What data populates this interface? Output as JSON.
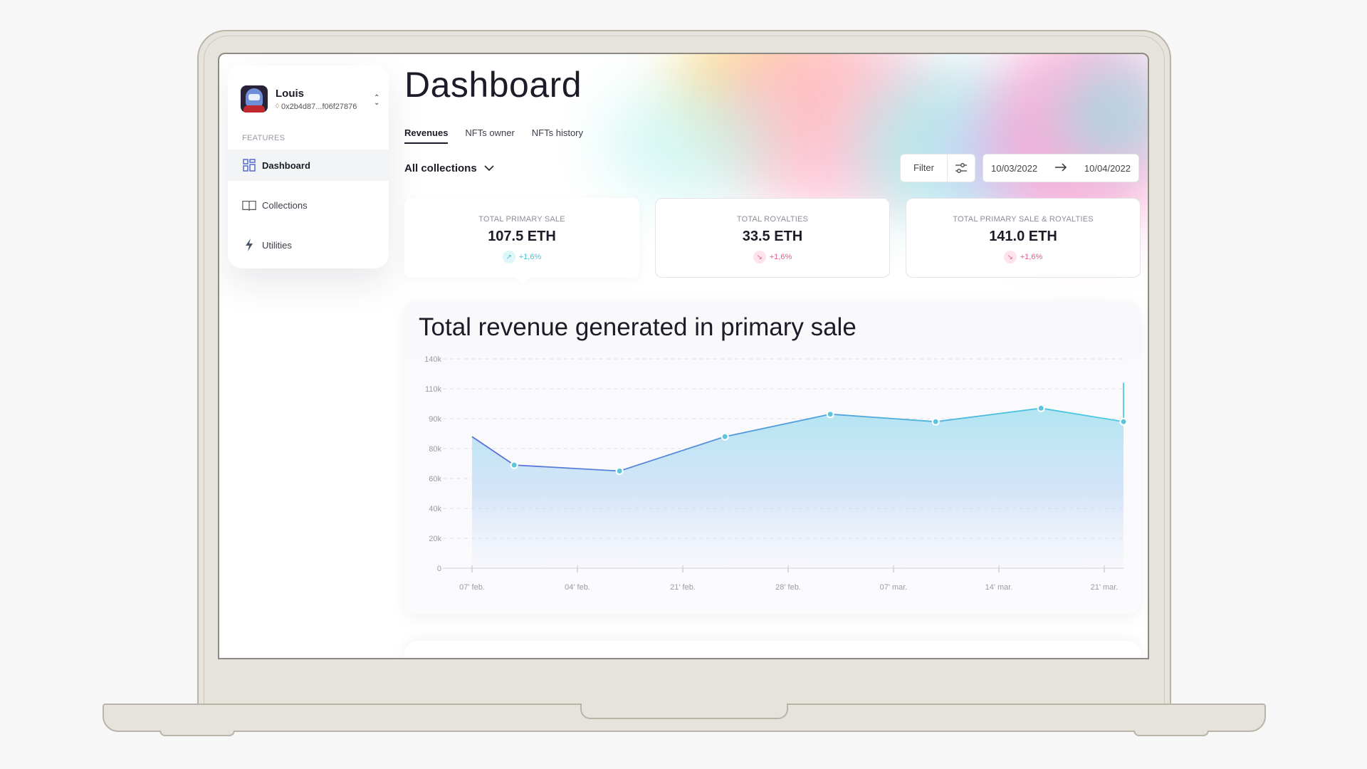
{
  "user": {
    "name": "Louis",
    "address": "0x2b4d87...f06f27876"
  },
  "sidebar": {
    "section_label": "FEATURES",
    "items": [
      {
        "label": "Dashboard",
        "icon": "grid-icon",
        "active": true
      },
      {
        "label": "Collections",
        "icon": "book-icon",
        "active": false
      },
      {
        "label": "Utilities",
        "icon": "lightning-icon",
        "active": false
      }
    ]
  },
  "page": {
    "title": "Dashboard"
  },
  "tabs": [
    {
      "label": "Revenues",
      "active": true
    },
    {
      "label": "NFTs owner",
      "active": false
    },
    {
      "label": "NFTs history",
      "active": false
    }
  ],
  "collection_select": "All collections",
  "filter": {
    "label": "Filter"
  },
  "date_range": {
    "start": "10/03/2022",
    "end": "10/04/2022"
  },
  "stats": [
    {
      "label": "TOTAL PRIMARY SALE",
      "value": "107.5 ETH",
      "change": "+1,6%",
      "trend": "up"
    },
    {
      "label": "TOTAL ROYALTIES",
      "value": "33.5 ETH",
      "change": "+1,6%",
      "trend": "down"
    },
    {
      "label": "TOTAL PRIMARY SALE & ROYALTIES",
      "value": "141.0 ETH",
      "change": "+1,6%",
      "trend": "down"
    }
  ],
  "colors": {
    "accent": "#3fc7d4",
    "negative": "#ea5a88",
    "line_start": "#5b6fd8",
    "line_end": "#49cfe0"
  },
  "chart_data": {
    "type": "area",
    "title": "Total revenue generated in primary sale",
    "y_ticks": [
      "0",
      "20k",
      "40k",
      "60k",
      "80k",
      "90k",
      "110k",
      "140k"
    ],
    "x_ticks": [
      "07' feb.",
      "04' feb.",
      "21' feb.",
      "28' feb.",
      "07' mar.",
      "14' mar.",
      "21' mar."
    ],
    "points": [
      {
        "x": 0.0,
        "y": 84000
      },
      {
        "x": 0.4,
        "y": 69000
      },
      {
        "x": 1.4,
        "y": 65000
      },
      {
        "x": 2.4,
        "y": 84000
      },
      {
        "x": 3.4,
        "y": 93000
      },
      {
        "x": 4.4,
        "y": 89000
      },
      {
        "x": 5.4,
        "y": 97000
      },
      {
        "x": 6.4,
        "y": 89000
      },
      {
        "x": 6.8,
        "y": 116000
      }
    ],
    "marked_points": [
      1,
      2,
      3,
      4,
      5,
      6,
      7
    ],
    "grid": true
  }
}
